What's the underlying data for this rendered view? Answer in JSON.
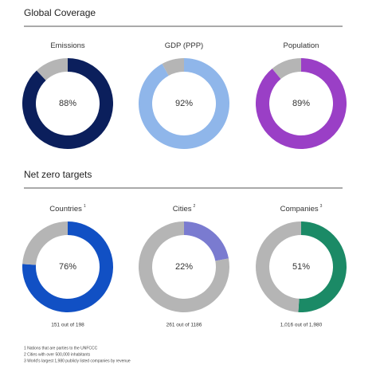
{
  "headings": [
    "Global Coverage",
    "Net zero targets"
  ],
  "chart_data": [
    {
      "type": "pie",
      "title": "Emissions",
      "values": [
        88,
        12
      ],
      "value_labels": [
        "88%",
        null
      ],
      "colors": [
        "#0b1f5c",
        "#b5b5b5"
      ]
    },
    {
      "type": "pie",
      "title": "GDP (PPP)",
      "values": [
        92,
        8
      ],
      "value_labels": [
        "92%",
        null
      ],
      "colors": [
        "#8fb6ea",
        "#b5b5b5"
      ]
    },
    {
      "type": "pie",
      "title": "Population",
      "values": [
        89,
        11
      ],
      "value_labels": [
        "89%",
        null
      ],
      "colors": [
        "#9a3fc6",
        "#b5b5b5"
      ]
    },
    {
      "type": "pie",
      "title": "Countries",
      "title_note": "1",
      "values": [
        76,
        24
      ],
      "value_labels": [
        "76%",
        null
      ],
      "colors": [
        "#1150c4",
        "#b5b5b5"
      ],
      "caption": "151 out of 198"
    },
    {
      "type": "pie",
      "title": "Cities",
      "title_note": "2",
      "values": [
        22,
        78
      ],
      "value_labels": [
        "22%",
        null
      ],
      "colors": [
        "#7a7bd0",
        "#b5b5b5"
      ],
      "caption": "261 out of 1186"
    },
    {
      "type": "pie",
      "title": "Companies",
      "title_note": "3",
      "values": [
        51,
        49
      ],
      "value_labels": [
        "51%",
        null
      ],
      "colors": [
        "#1b8a66",
        "#b5b5b5"
      ],
      "caption": "1,016 out of 1,980"
    }
  ],
  "footnotes": [
    "1 Nations that are parties to the UNFCCC",
    "2 Cities with over 500,000 inhabitants",
    "3 World's largest 1,980 publicly listed companies by revenue"
  ]
}
